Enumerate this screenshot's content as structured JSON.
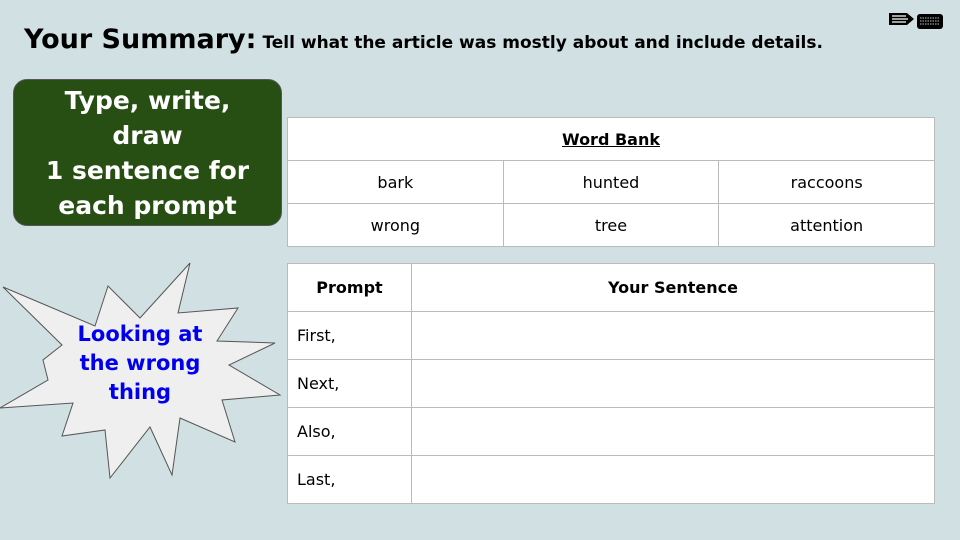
{
  "header": {
    "title": "Your Summary:",
    "subtitle": "Tell what the article was mostly about  and include details.",
    "icon": "pencil-keyboard-icon"
  },
  "instruction": {
    "lines": [
      "Type, write,",
      "draw",
      "1 sentence for",
      "each prompt"
    ],
    "color": "#274e13"
  },
  "word_bank": {
    "title": "Word Bank",
    "words": [
      [
        "bark",
        "hunted",
        "raccoons"
      ],
      [
        "wrong",
        "tree",
        "attention"
      ]
    ]
  },
  "callout": {
    "lines": [
      "Looking at",
      "the wrong",
      "thing"
    ],
    "color": "#0000ee"
  },
  "prompt_table": {
    "headers": [
      "Prompt",
      "Your Sentence"
    ],
    "rows": [
      {
        "prompt": "First,",
        "sentence": ""
      },
      {
        "prompt": "Next,",
        "sentence": ""
      },
      {
        "prompt": "Also,",
        "sentence": ""
      },
      {
        "prompt": "Last,",
        "sentence": ""
      }
    ]
  }
}
